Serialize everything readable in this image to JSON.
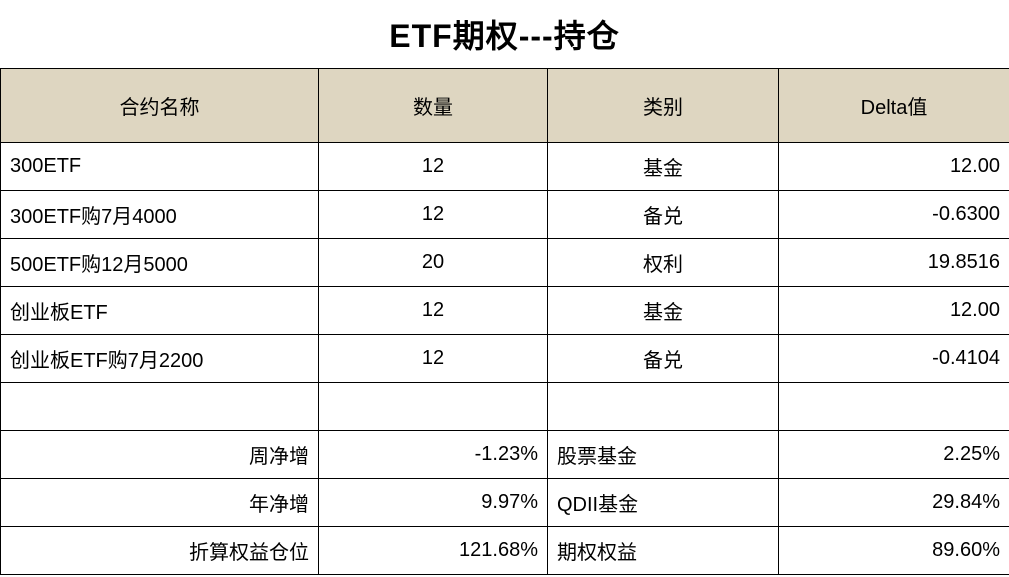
{
  "title": "ETF期权---持仓",
  "headers": [
    "合约名称",
    "数量",
    "类别",
    "Delta值"
  ],
  "rows": [
    {
      "name": "300ETF",
      "qty": "12",
      "category": "基金",
      "delta": "12.00"
    },
    {
      "name": "300ETF购7月4000",
      "qty": "12",
      "category": "备兑",
      "delta": "-0.6300"
    },
    {
      "name": "500ETF购12月5000",
      "qty": "20",
      "category": "权利",
      "delta": "19.8516"
    },
    {
      "name": "创业板ETF",
      "qty": "12",
      "category": "基金",
      "delta": "12.00"
    },
    {
      "name": "创业板ETF购7月2200",
      "qty": "12",
      "category": "备兑",
      "delta": "-0.4104"
    }
  ],
  "summary": [
    {
      "label": "周净增",
      "value": "-1.23%",
      "category": "股票基金",
      "cat_value": "2.25%"
    },
    {
      "label": "年净增",
      "value": "9.97%",
      "category": "QDII基金",
      "cat_value": "29.84%"
    },
    {
      "label": "折算权益仓位",
      "value": "121.68%",
      "category": "期权权益",
      "cat_value": "89.60%"
    }
  ],
  "colors": {
    "header_bg": "#ded6c1",
    "border": "#000000",
    "background": "#ffffff"
  }
}
